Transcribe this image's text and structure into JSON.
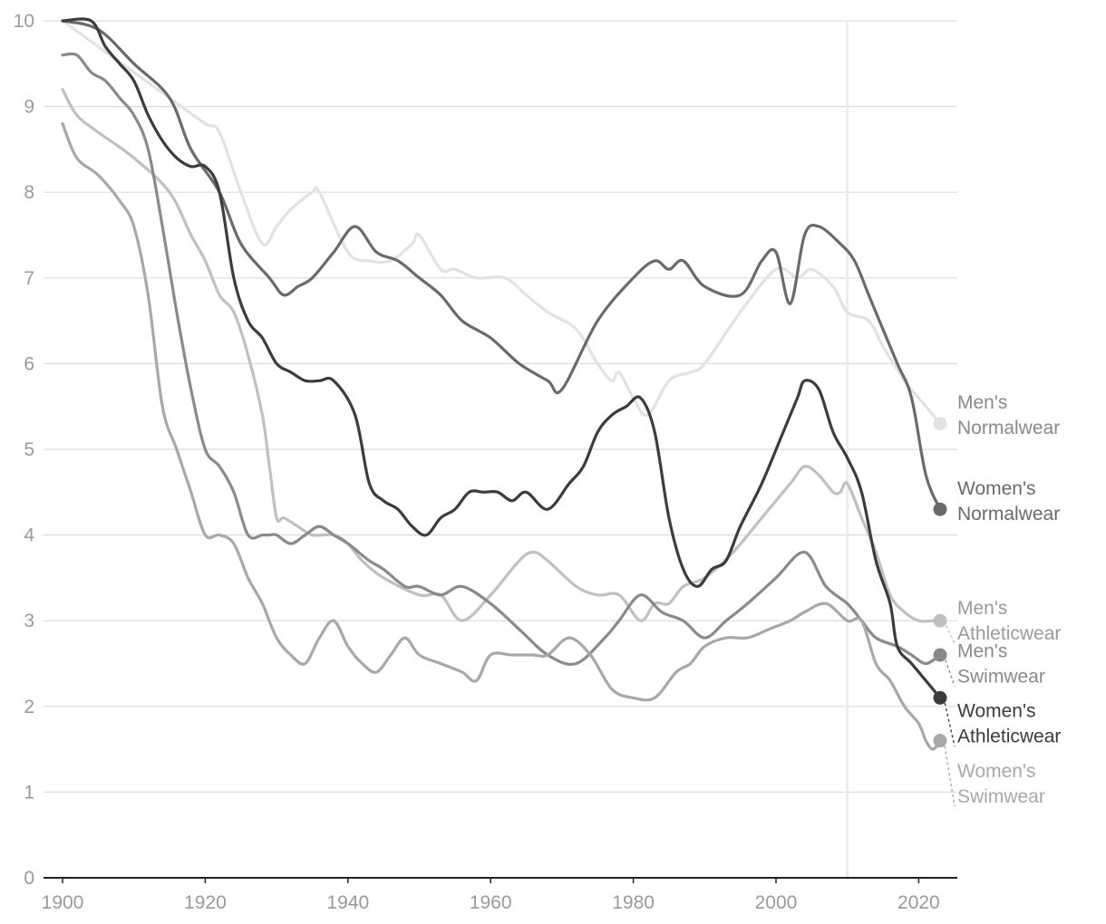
{
  "chart_data": {
    "type": "line",
    "title": "",
    "xlabel": "",
    "ylabel": "",
    "xlim": [
      1900,
      2023
    ],
    "ylim": [
      0,
      10
    ],
    "x_ticks": [
      1900,
      1920,
      1940,
      1960,
      1980,
      2000,
      2020
    ],
    "y_ticks": [
      0,
      1,
      2,
      3,
      4,
      5,
      6,
      7,
      8,
      9,
      10
    ],
    "grid": true,
    "reference_line_x": 2010,
    "series": [
      {
        "name": "Men's Normalwear",
        "label_lines": [
          "Men's",
          "Normalwear"
        ],
        "color": "#e2e2e2",
        "x": [
          1900,
          1905,
          1910,
          1915,
          1920,
          1922,
          1925,
          1928,
          1930,
          1932,
          1935,
          1936,
          1940,
          1943,
          1946,
          1949,
          1950,
          1953,
          1955,
          1958,
          1962,
          1965,
          1968,
          1972,
          1975,
          1977,
          1978,
          1980,
          1982,
          1985,
          1988,
          1990,
          1995,
          2000,
          2003,
          2005,
          2008,
          2010,
          2013,
          2015,
          2018,
          2020,
          2023
        ],
        "y": [
          10,
          9.7,
          9.4,
          9.1,
          8.8,
          8.7,
          8.0,
          7.4,
          7.6,
          7.8,
          8.0,
          8.0,
          7.3,
          7.2,
          7.2,
          7.4,
          7.5,
          7.1,
          7.1,
          7.0,
          7.0,
          6.8,
          6.6,
          6.4,
          6.0,
          5.8,
          5.9,
          5.6,
          5.4,
          5.8,
          5.9,
          6.0,
          6.6,
          7.1,
          7.0,
          7.1,
          6.9,
          6.6,
          6.5,
          6.2,
          5.8,
          5.6,
          5.3
        ]
      },
      {
        "name": "Women's Normalwear",
        "label_lines": [
          "Women's",
          "Normalwear"
        ],
        "color": "#6a6a6a",
        "x": [
          1900,
          1905,
          1910,
          1915,
          1918,
          1922,
          1925,
          1929,
          1931,
          1933,
          1935,
          1938,
          1941,
          1944,
          1947,
          1950,
          1953,
          1956,
          1960,
          1964,
          1968,
          1970,
          1975,
          1980,
          1983,
          1985,
          1987,
          1990,
          1995,
          1998,
          2000,
          2002,
          2004,
          2006,
          2009,
          2011,
          2013,
          2015,
          2017,
          2019,
          2021,
          2023
        ],
        "y": [
          10,
          9.9,
          9.5,
          9.1,
          8.5,
          8.0,
          7.4,
          7.0,
          6.8,
          6.9,
          7.0,
          7.3,
          7.6,
          7.3,
          7.2,
          7.0,
          6.8,
          6.5,
          6.3,
          6.0,
          5.8,
          5.7,
          6.5,
          7.0,
          7.2,
          7.1,
          7.2,
          6.9,
          6.8,
          7.2,
          7.3,
          6.7,
          7.5,
          7.6,
          7.4,
          7.2,
          6.8,
          6.4,
          6.0,
          5.6,
          4.7,
          4.3
        ]
      },
      {
        "name": "Men's Athleticwear",
        "label_lines": [
          "Men's",
          "Athleticwear"
        ],
        "color": "#c0c0c0",
        "x": [
          1900,
          1902,
          1905,
          1910,
          1915,
          1918,
          1920,
          1922,
          1924,
          1926,
          1928,
          1929,
          1930,
          1931,
          1933,
          1935,
          1938,
          1940,
          1942,
          1945,
          1950,
          1953,
          1956,
          1960,
          1964,
          1966,
          1968,
          1972,
          1975,
          1978,
          1981,
          1983,
          1985,
          1987,
          1990,
          1994,
          1998,
          2002,
          2004,
          2006,
          2008,
          2009,
          2010,
          2012,
          2014,
          2016,
          2018,
          2020,
          2022,
          2023
        ],
        "y": [
          9.2,
          8.9,
          8.7,
          8.4,
          8.0,
          7.5,
          7.2,
          6.8,
          6.6,
          6.1,
          5.4,
          4.8,
          4.2,
          4.2,
          4.1,
          4.0,
          4.0,
          3.9,
          3.7,
          3.5,
          3.3,
          3.3,
          3.0,
          3.3,
          3.7,
          3.8,
          3.7,
          3.4,
          3.3,
          3.3,
          3.0,
          3.2,
          3.2,
          3.4,
          3.5,
          3.8,
          4.2,
          4.6,
          4.8,
          4.7,
          4.5,
          4.5,
          4.6,
          4.2,
          3.8,
          3.3,
          3.1,
          3.0,
          3.0,
          3.0
        ]
      },
      {
        "name": "Men's Swimwear",
        "label_lines": [
          "Men's",
          "Swimwear"
        ],
        "color": "#8a8a8a",
        "x": [
          1900,
          1902,
          1904,
          1906,
          1908,
          1910,
          1912,
          1914,
          1916,
          1918,
          1920,
          1922,
          1924,
          1926,
          1928,
          1929,
          1930,
          1932,
          1934,
          1936,
          1938,
          1940,
          1943,
          1945,
          1948,
          1950,
          1953,
          1956,
          1960,
          1964,
          1968,
          1972,
          1976,
          1978,
          1981,
          1984,
          1987,
          1990,
          1993,
          1996,
          2000,
          2004,
          2007,
          2010,
          2012,
          2014,
          2017,
          2019,
          2021,
          2023
        ],
        "y": [
          9.6,
          9.6,
          9.4,
          9.3,
          9.1,
          8.9,
          8.5,
          7.6,
          6.6,
          5.7,
          5.0,
          4.8,
          4.5,
          4.0,
          4.0,
          4.0,
          4.0,
          3.9,
          4.0,
          4.1,
          4.0,
          3.9,
          3.7,
          3.6,
          3.4,
          3.4,
          3.3,
          3.4,
          3.2,
          2.9,
          2.6,
          2.5,
          2.8,
          3.0,
          3.3,
          3.1,
          3.0,
          2.8,
          3.0,
          3.2,
          3.5,
          3.8,
          3.4,
          3.2,
          3.0,
          2.8,
          2.7,
          2.6,
          2.5,
          2.6
        ]
      },
      {
        "name": "Women's Athleticwear",
        "label_lines": [
          "Women's",
          "Athleticwear"
        ],
        "color": "#3c3c3c",
        "x": [
          1900,
          1904,
          1906,
          1908,
          1910,
          1912,
          1914,
          1916,
          1918,
          1920,
          1922,
          1924,
          1926,
          1928,
          1930,
          1932,
          1934,
          1936,
          1938,
          1941,
          1943,
          1945,
          1947,
          1949,
          1951,
          1953,
          1955,
          1957,
          1959,
          1961,
          1963,
          1965,
          1968,
          1971,
          1973,
          1975,
          1977,
          1979,
          1981,
          1983,
          1985,
          1987,
          1989,
          1991,
          1993,
          1995,
          1998,
          2001,
          2003,
          2004,
          2006,
          2008,
          2010,
          2012,
          2014,
          2016,
          2017,
          2019,
          2021,
          2023
        ],
        "y": [
          10,
          10,
          9.7,
          9.5,
          9.3,
          8.9,
          8.6,
          8.4,
          8.3,
          8.3,
          8.0,
          7.0,
          6.5,
          6.3,
          6.0,
          5.9,
          5.8,
          5.8,
          5.8,
          5.4,
          4.6,
          4.4,
          4.3,
          4.1,
          4.0,
          4.2,
          4.3,
          4.5,
          4.5,
          4.5,
          4.4,
          4.5,
          4.3,
          4.6,
          4.8,
          5.2,
          5.4,
          5.5,
          5.6,
          5.2,
          4.2,
          3.6,
          3.4,
          3.6,
          3.7,
          4.1,
          4.6,
          5.2,
          5.6,
          5.8,
          5.7,
          5.2,
          4.9,
          4.5,
          3.7,
          3.2,
          2.7,
          2.5,
          2.3,
          2.1
        ]
      },
      {
        "name": "Women's Swimwear",
        "label_lines": [
          "Women's",
          "Swimwear"
        ],
        "color": "#a8a8a8",
        "x": [
          1900,
          1902,
          1905,
          1908,
          1910,
          1912,
          1914,
          1916,
          1918,
          1920,
          1922,
          1924,
          1926,
          1928,
          1930,
          1932,
          1934,
          1936,
          1938,
          1940,
          1942,
          1944,
          1946,
          1948,
          1950,
          1953,
          1956,
          1958,
          1960,
          1963,
          1966,
          1968,
          1971,
          1974,
          1977,
          1980,
          1983,
          1986,
          1988,
          1990,
          1993,
          1996,
          1999,
          2002,
          2004,
          2007,
          2010,
          2012,
          2014,
          2016,
          2018,
          2020,
          2021,
          2022,
          2023
        ],
        "y": [
          8.8,
          8.4,
          8.2,
          7.9,
          7.6,
          6.8,
          5.5,
          5.0,
          4.5,
          4.0,
          4.0,
          3.9,
          3.5,
          3.2,
          2.8,
          2.6,
          2.5,
          2.8,
          3.0,
          2.7,
          2.5,
          2.4,
          2.6,
          2.8,
          2.6,
          2.5,
          2.4,
          2.3,
          2.6,
          2.6,
          2.6,
          2.6,
          2.8,
          2.6,
          2.2,
          2.1,
          2.1,
          2.4,
          2.5,
          2.7,
          2.8,
          2.8,
          2.9,
          3.0,
          3.1,
          3.2,
          3.0,
          3.0,
          2.5,
          2.3,
          2.0,
          1.8,
          1.6,
          1.5,
          1.6
        ]
      }
    ],
    "end_labels": [
      {
        "series": 0,
        "label_y": 5.4
      },
      {
        "series": 1,
        "label_y": 4.4
      },
      {
        "series": 2,
        "label_y": 3.0
      },
      {
        "series": 3,
        "label_y": 2.5
      },
      {
        "series": 4,
        "label_y": 1.8
      },
      {
        "series": 5,
        "label_y": 1.1
      }
    ]
  }
}
